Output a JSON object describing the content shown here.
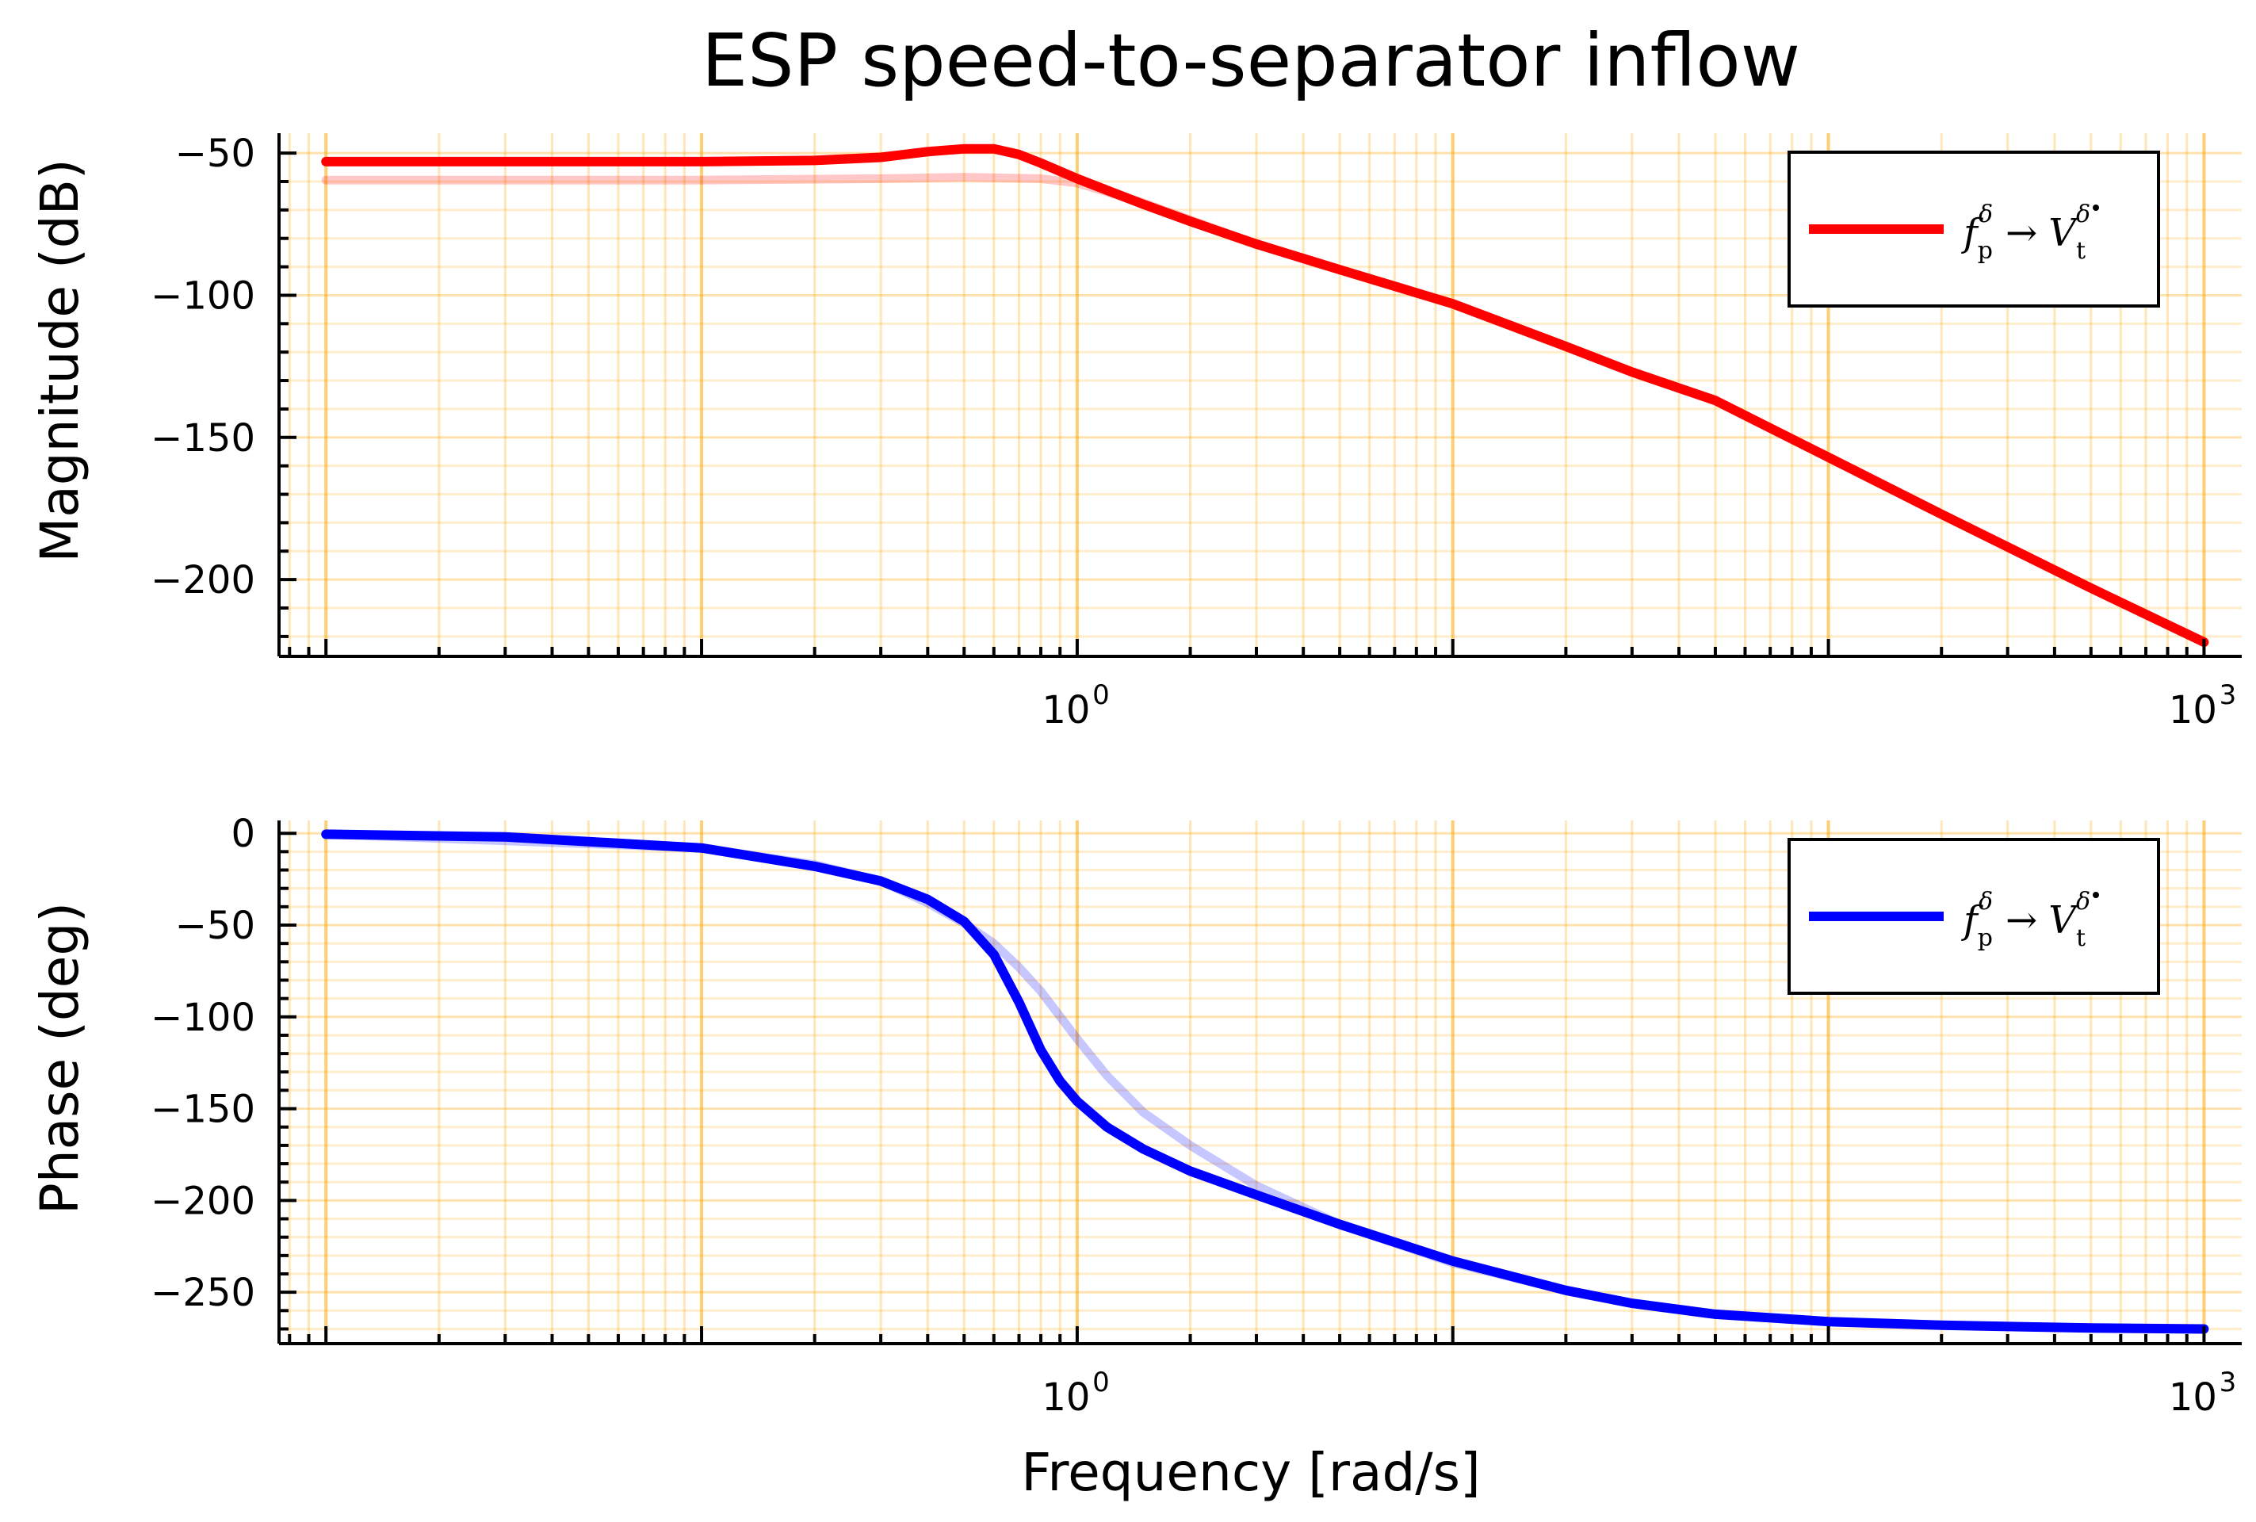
{
  "title": "ESP speed-to-separator inflow",
  "colors": {
    "grid": "#ffa500",
    "magnitude_line": "#ff0000",
    "phase_line": "#0000ff"
  },
  "chart_data": [
    {
      "type": "line",
      "panel": "magnitude",
      "xlabel": "",
      "ylabel": "Magnitude (dB)",
      "xscale": "log",
      "xlim": [
        0.0075,
        1260
      ],
      "ylim": [
        -227,
        -43
      ],
      "xticks": [
        {
          "value": 1,
          "base": "10",
          "exp": "0"
        },
        {
          "value": 1000,
          "base": "10",
          "exp": "3"
        }
      ],
      "yticks": [
        {
          "value": -50,
          "label": "−50"
        },
        {
          "value": -100,
          "label": "−100"
        },
        {
          "value": -150,
          "label": "−150"
        },
        {
          "value": -200,
          "label": "−200"
        }
      ],
      "grid": true,
      "legend": {
        "position": "top-right",
        "entry": "f_p^δ → V̇_t^δ"
      },
      "series": [
        {
          "name": "f_p^δ → V̇_t^δ",
          "style": "solid",
          "x": [
            0.01,
            0.03,
            0.1,
            0.2,
            0.3,
            0.4,
            0.5,
            0.6,
            0.7,
            0.8,
            1,
            1.5,
            2,
            3,
            5,
            10,
            20,
            30,
            50,
            100,
            200,
            500,
            1000
          ],
          "y": [
            -53,
            -53,
            -53,
            -52.6,
            -51.5,
            -49.5,
            -48.5,
            -48.5,
            -50.5,
            -53.5,
            -59,
            -68,
            -74,
            -82,
            -91,
            -103,
            -118,
            -127,
            -137,
            -157,
            -177,
            -203,
            -222
          ]
        },
        {
          "style": "faint",
          "x": [
            0.01,
            0.1,
            0.3,
            0.5,
            0.8,
            1,
            1.5,
            2,
            3,
            5,
            10
          ],
          "y": [
            -59.5,
            -59.5,
            -59,
            -58.5,
            -59,
            -60.5,
            -67.5,
            -73.5,
            -82,
            -91,
            -103
          ]
        }
      ]
    },
    {
      "type": "line",
      "panel": "phase",
      "xlabel": "Frequency [rad/s]",
      "ylabel": "Phase (deg)",
      "xscale": "log",
      "xlim": [
        0.0075,
        1260
      ],
      "ylim": [
        -278,
        7
      ],
      "xticks": [
        {
          "value": 1,
          "base": "10",
          "exp": "0"
        },
        {
          "value": 1000,
          "base": "10",
          "exp": "3"
        }
      ],
      "yticks": [
        {
          "value": 0,
          "label": "0"
        },
        {
          "value": -50,
          "label": "−50"
        },
        {
          "value": -100,
          "label": "−100"
        },
        {
          "value": -150,
          "label": "−150"
        },
        {
          "value": -200,
          "label": "−200"
        },
        {
          "value": -250,
          "label": "−250"
        }
      ],
      "grid": true,
      "legend": {
        "position": "top-right",
        "entry": "f_p^δ → V̇_t^δ"
      },
      "series": [
        {
          "name": "f_p^δ → V̇_t^δ",
          "style": "solid",
          "x": [
            0.01,
            0.03,
            0.1,
            0.2,
            0.3,
            0.4,
            0.5,
            0.6,
            0.7,
            0.8,
            0.9,
            1,
            1.2,
            1.5,
            2,
            3,
            5,
            10,
            20,
            30,
            50,
            100,
            200,
            500,
            1000
          ],
          "y": [
            -0.5,
            -2,
            -8,
            -18,
            -26,
            -36,
            -48,
            -66,
            -92,
            -118,
            -135,
            -146,
            -160,
            -172,
            -184,
            -197,
            -213,
            -233,
            -249,
            -256,
            -262,
            -266,
            -268,
            -269.5,
            -270
          ]
        },
        {
          "style": "faint",
          "x": [
            0.01,
            0.1,
            0.2,
            0.3,
            0.4,
            0.5,
            0.6,
            0.7,
            0.8,
            1,
            1.2,
            1.5,
            2,
            3,
            5,
            10,
            20
          ],
          "y": [
            -0.5,
            -8,
            -17,
            -26,
            -38,
            -49,
            -60,
            -73,
            -86,
            -112,
            -132,
            -152,
            -170,
            -192,
            -213,
            -234,
            -249
          ]
        }
      ]
    }
  ]
}
